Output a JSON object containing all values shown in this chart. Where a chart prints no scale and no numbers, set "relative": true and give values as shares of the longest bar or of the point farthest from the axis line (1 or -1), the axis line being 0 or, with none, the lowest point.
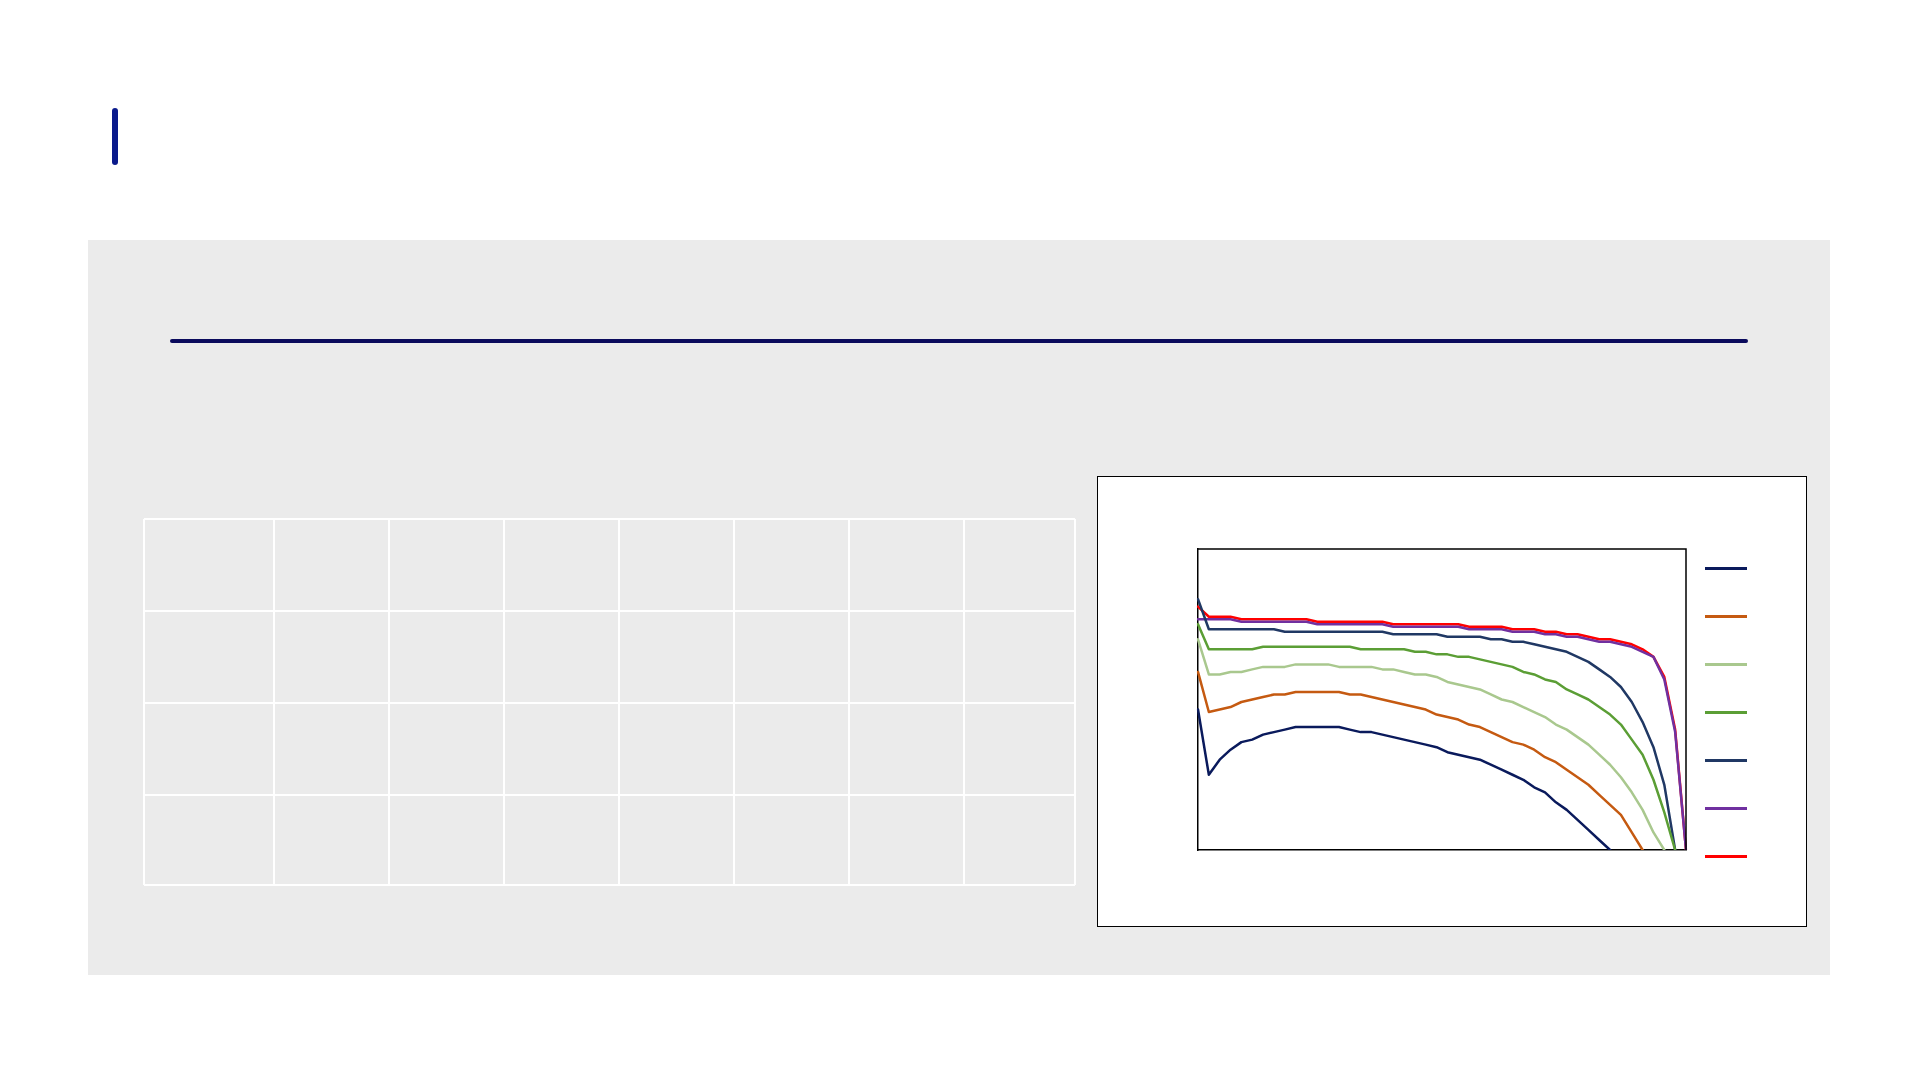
{
  "chart_data": {
    "type": "line",
    "relative": true,
    "grid": false,
    "marker": "none",
    "line_style": "solid",
    "categories": [
      null,
      null,
      null,
      null,
      null,
      null,
      null,
      null,
      null,
      null,
      null,
      null,
      null,
      null,
      null,
      null,
      null,
      null,
      null,
      null,
      null,
      null,
      null,
      null,
      null,
      null,
      null,
      null,
      null,
      null,
      null,
      null,
      null,
      null,
      null,
      null,
      null,
      null,
      null,
      null,
      null,
      null,
      null,
      null,
      null,
      null
    ],
    "series": [
      {
        "color": "#0a1a5c",
        "values": [
          0.56,
          0.3,
          0.36,
          0.4,
          0.43,
          0.44,
          0.46,
          0.47,
          0.48,
          0.49,
          0.49,
          0.49,
          0.49,
          0.49,
          0.48,
          0.47,
          0.47,
          0.46,
          0.45,
          0.44,
          0.43,
          0.42,
          0.41,
          0.39,
          0.38,
          0.37,
          0.36,
          0.34,
          0.32,
          0.3,
          0.28,
          0.25,
          0.23,
          0.19,
          0.16,
          0.12,
          0.08,
          0.04,
          0,
          null,
          null,
          null,
          null,
          null,
          null,
          null
        ]
      },
      {
        "color": "#c55a11",
        "values": [
          0.71,
          0.55,
          0.56,
          0.57,
          0.59,
          0.6,
          0.61,
          0.62,
          0.62,
          0.63,
          0.63,
          0.63,
          0.63,
          0.63,
          0.62,
          0.62,
          0.61,
          0.6,
          0.59,
          0.58,
          0.57,
          0.56,
          0.54,
          0.53,
          0.52,
          0.5,
          0.49,
          0.47,
          0.45,
          0.43,
          0.42,
          0.4,
          0.37,
          0.35,
          0.32,
          0.29,
          0.26,
          0.22,
          0.18,
          0.14,
          0.07,
          0,
          null,
          null,
          null,
          null
        ]
      },
      {
        "color": "#a9c88e",
        "values": [
          0.84,
          0.7,
          0.7,
          0.71,
          0.71,
          0.72,
          0.73,
          0.73,
          0.73,
          0.74,
          0.74,
          0.74,
          0.74,
          0.73,
          0.73,
          0.73,
          0.73,
          0.72,
          0.72,
          0.71,
          0.7,
          0.7,
          0.69,
          0.67,
          0.66,
          0.65,
          0.64,
          0.62,
          0.6,
          0.59,
          0.57,
          0.55,
          0.53,
          0.5,
          0.48,
          0.45,
          0.42,
          0.38,
          0.34,
          0.29,
          0.23,
          0.16,
          0.07,
          0,
          null,
          null
        ]
      },
      {
        "color": "#5b9e35",
        "values": [
          0.9,
          0.8,
          0.8,
          0.8,
          0.8,
          0.8,
          0.81,
          0.81,
          0.81,
          0.81,
          0.81,
          0.81,
          0.81,
          0.81,
          0.81,
          0.8,
          0.8,
          0.8,
          0.8,
          0.8,
          0.79,
          0.79,
          0.78,
          0.78,
          0.77,
          0.77,
          0.76,
          0.75,
          0.74,
          0.73,
          0.71,
          0.7,
          0.68,
          0.67,
          0.64,
          0.62,
          0.6,
          0.57,
          0.54,
          0.5,
          0.44,
          0.38,
          0.28,
          0.15,
          0,
          null
        ]
      },
      {
        "color": "#203864",
        "values": [
          1,
          0.88,
          0.88,
          0.88,
          0.88,
          0.88,
          0.88,
          0.88,
          0.87,
          0.87,
          0.87,
          0.87,
          0.87,
          0.87,
          0.87,
          0.87,
          0.87,
          0.87,
          0.86,
          0.86,
          0.86,
          0.86,
          0.86,
          0.85,
          0.85,
          0.85,
          0.85,
          0.84,
          0.84,
          0.83,
          0.83,
          0.82,
          0.81,
          0.8,
          0.79,
          0.77,
          0.75,
          0.72,
          0.69,
          0.65,
          0.59,
          0.51,
          0.41,
          0.26,
          0,
          null
        ]
      },
      {
        "color": "#7030a0",
        "values": [
          0.92,
          0.92,
          0.92,
          0.92,
          0.91,
          0.91,
          0.91,
          0.91,
          0.91,
          0.91,
          0.91,
          0.9,
          0.9,
          0.9,
          0.9,
          0.9,
          0.9,
          0.9,
          0.89,
          0.89,
          0.89,
          0.89,
          0.89,
          0.89,
          0.89,
          0.88,
          0.88,
          0.88,
          0.88,
          0.87,
          0.87,
          0.87,
          0.86,
          0.86,
          0.85,
          0.85,
          0.84,
          0.83,
          0.83,
          0.82,
          0.81,
          0.79,
          0.77,
          0.68,
          0.47,
          0
        ]
      },
      {
        "color": "#ff0000",
        "values": [
          0.97,
          0.93,
          0.93,
          0.93,
          0.92,
          0.92,
          0.92,
          0.92,
          0.92,
          0.92,
          0.92,
          0.91,
          0.91,
          0.91,
          0.91,
          0.91,
          0.91,
          0.91,
          0.9,
          0.9,
          0.9,
          0.9,
          0.9,
          0.9,
          0.9,
          0.89,
          0.89,
          0.89,
          0.89,
          0.88,
          0.88,
          0.88,
          0.87,
          0.87,
          0.86,
          0.86,
          0.85,
          0.84,
          0.84,
          0.83,
          0.82,
          0.8,
          0.77,
          0.69,
          0.48,
          0
        ]
      }
    ]
  }
}
